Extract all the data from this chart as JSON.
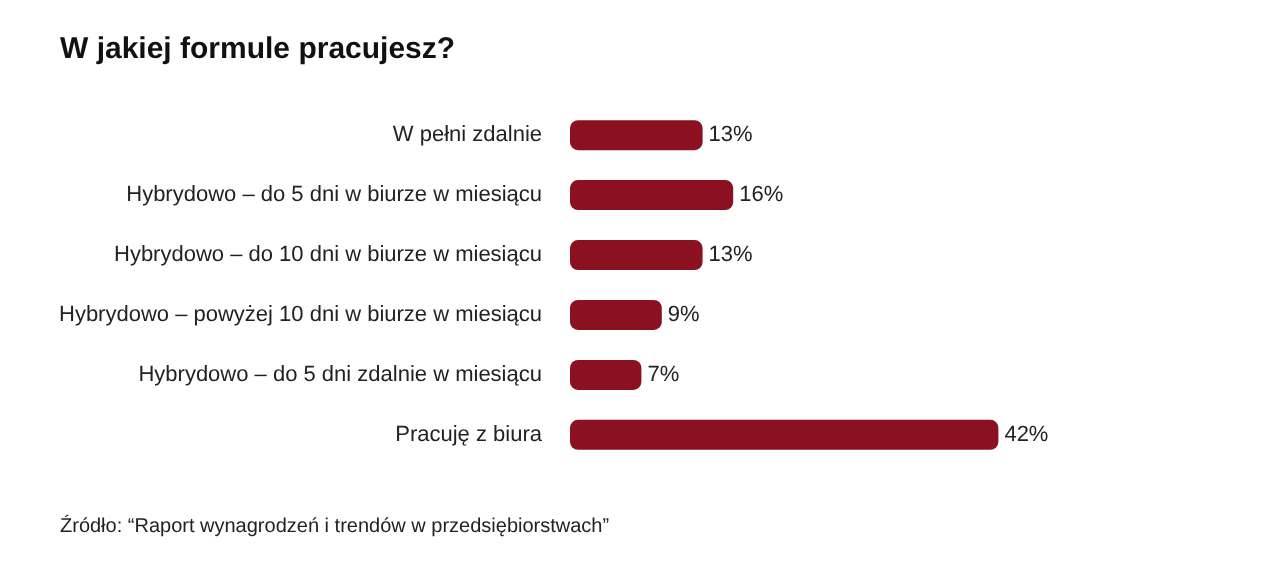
{
  "chart_data": {
    "type": "bar",
    "orientation": "horizontal",
    "title": "W jakiej formule pracujesz?",
    "categories": [
      "W pełni zdalnie",
      "Hybrydowo – do 5 dni w biurze w miesiącu",
      "Hybrydowo – do 10 dni w biurze w miesiącu",
      "Hybrydowo – powyżej 10 dni w biurze w miesiącu",
      "Hybrydowo – do 5 dni zdalnie w miesiącu",
      "Pracuję z biura"
    ],
    "values": [
      13,
      16,
      13,
      9,
      7,
      42
    ],
    "value_labels": [
      "13%",
      "16%",
      "13%",
      "9%",
      "7%",
      "42%"
    ],
    "color": "#8b1120",
    "legend": false,
    "annotations": [
      "Źródło: “Raport wynagrodzeń i trendów w przedsiębiorstwach”"
    ]
  }
}
